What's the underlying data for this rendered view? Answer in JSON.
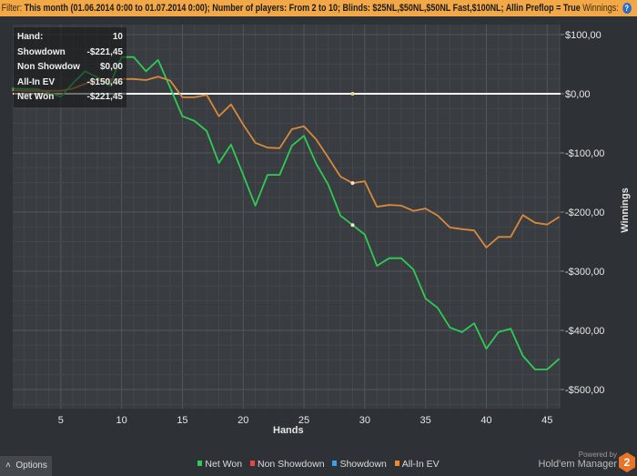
{
  "filter": {
    "label": "Filter:",
    "text": "This month (01.06.2014 0:00 to 01.07.2014 0:00); Number of players: From 2 to 10; Blinds: $25NL,$50NL,$50NL Fast,$100NL; Allin Preflop = True",
    "suffix": "Winnings:",
    "help_icon": "question-circle-icon"
  },
  "tooltip": {
    "rows": [
      {
        "label": "Hand:",
        "value": "10"
      },
      {
        "label": "Showdown",
        "value": "-$221,45"
      },
      {
        "label": "Non Showdow",
        "value": "$0,00"
      },
      {
        "label": "All-In EV",
        "value": "-$150,46"
      },
      {
        "label": "Net Won",
        "value": "-$221,45"
      }
    ]
  },
  "chart_data": {
    "type": "line",
    "xlabel": "Hands",
    "ylabel": "Winnings",
    "xlim": [
      1,
      46
    ],
    "ylim": [
      -540,
      120
    ],
    "x_ticks": [
      5,
      10,
      15,
      20,
      25,
      30,
      35,
      40,
      45
    ],
    "y_ticks": [
      100,
      0,
      -100,
      -200,
      -300,
      -400,
      -500
    ],
    "y_tick_labels": [
      "$100,00",
      "$0,00",
      "-$100,00",
      "-$200,00",
      "-$300,00",
      "-$400,00",
      "-$500,00"
    ],
    "grid": true,
    "legend_position": "bottom",
    "highlight_hand": 29,
    "series": [
      {
        "name": "Net Won",
        "color": "#2ecc55",
        "values": [
          9,
          8,
          8,
          2,
          -5,
          18,
          38,
          28,
          14,
          62,
          62,
          38,
          57,
          10,
          -38,
          -46,
          -63,
          -117,
          -86,
          -137,
          -189,
          -137,
          -137,
          -88,
          -71,
          -118,
          -154,
          -206,
          -222,
          -238,
          -291,
          -278,
          -278,
          -297,
          -346,
          -362,
          -395,
          -403,
          -388,
          -431,
          -403,
          -397,
          -443,
          -466,
          -466,
          -448
        ]
      },
      {
        "name": "Non Showdown",
        "color": "#e84545",
        "values": []
      },
      {
        "name": "Showdown",
        "color": "#3aa0e8",
        "values": []
      },
      {
        "name": "All-In EV",
        "color": "#d8893a",
        "values": [
          6,
          5,
          5,
          5,
          5,
          9,
          17,
          23,
          24,
          25,
          25,
          23,
          29,
          22,
          -6,
          -6,
          -2,
          -38,
          -18,
          -52,
          -83,
          -91,
          -92,
          -60,
          -55,
          -77,
          -108,
          -140,
          -151,
          -148,
          -191,
          -188,
          -189,
          -198,
          -194,
          -206,
          -226,
          -229,
          -231,
          -260,
          -242,
          -242,
          -205,
          -218,
          -221,
          -208
        ]
      }
    ]
  },
  "legend": {
    "items": [
      {
        "label": "Net Won",
        "color": "#2ecc55"
      },
      {
        "label": "Non Showdown",
        "color": "#e84545"
      },
      {
        "label": "Showdown",
        "color": "#3aa0e8"
      },
      {
        "label": "All-In EV",
        "color": "#f08a2a"
      }
    ]
  },
  "options_label": "Options",
  "options_icon": "chevron-up-icon",
  "brand": {
    "powered": "Powered by",
    "name": "Hold'em Manager",
    "logo": "2"
  }
}
